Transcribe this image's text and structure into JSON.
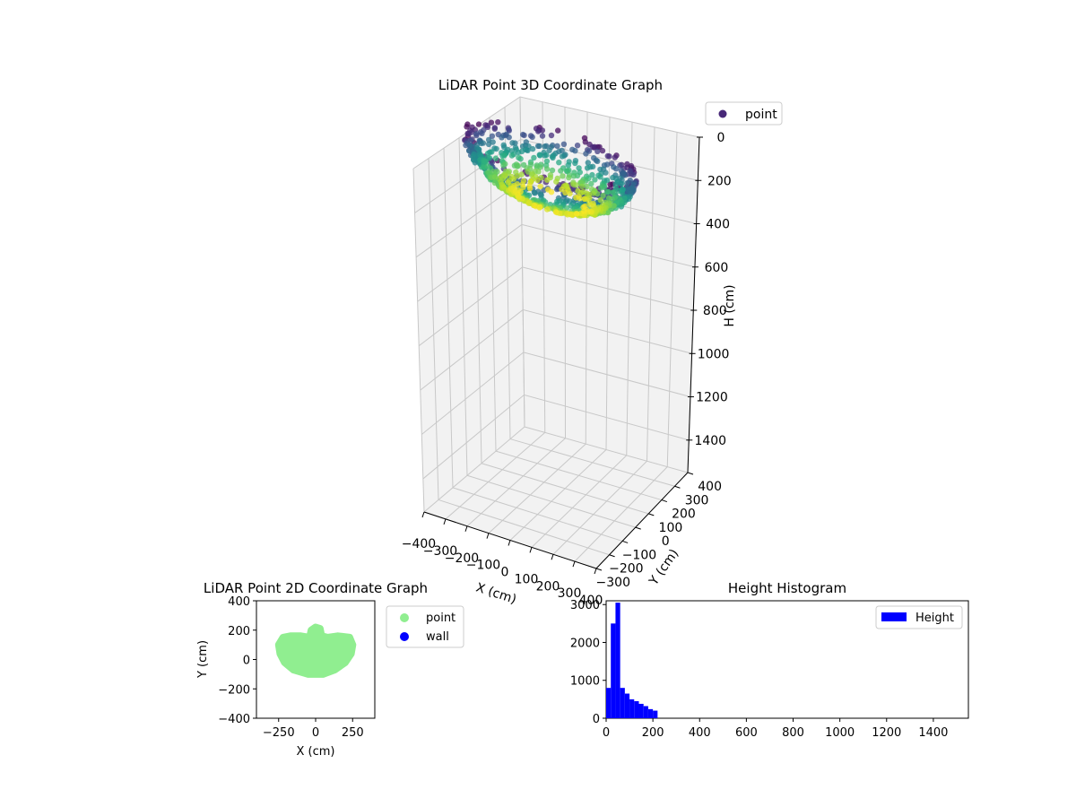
{
  "colors": {
    "pane_fill": "#f2f2f2",
    "grid": "#c8c8c8",
    "point_2d": "#90ee90",
    "wall_2d": "#0000ff",
    "histogram_bar": "#0000ff",
    "legend_point_3d": "#482878",
    "viridis": [
      "#440154",
      "#482878",
      "#3e4a89",
      "#31688e",
      "#26828e",
      "#1f9e89",
      "#35b779",
      "#6ece58",
      "#b5de2b",
      "#fde725"
    ]
  },
  "chart_data": [
    {
      "type": "scatter",
      "projection": "3d",
      "title": "LiDAR Point 3D Coordinate Graph",
      "xlabel": "X (cm)",
      "ylabel": "Y (cm)",
      "zlabel": "H (cm)",
      "xlim": [
        -400,
        400
      ],
      "ylim": [
        -300,
        400
      ],
      "zlim": [
        1550,
        0
      ],
      "x_ticks": [
        -400,
        -300,
        -200,
        -100,
        0,
        100,
        200,
        300,
        400
      ],
      "y_ticks": [
        -300,
        -200,
        -100,
        0,
        100,
        200,
        300,
        400
      ],
      "z_ticks": [
        0,
        200,
        400,
        600,
        800,
        1000,
        1200,
        1400
      ],
      "z_inverted": true,
      "colormap": "viridis (by height)",
      "legend": {
        "entries": [
          "point"
        ],
        "placement": "upper-right outside"
      },
      "grid": true,
      "point_cloud_shape": "bowl",
      "point_cloud_extent": {
        "x": [
          -400,
          400
        ],
        "y": [
          -100,
          220
        ],
        "h": [
          0,
          220
        ]
      }
    },
    {
      "type": "scatter",
      "title": "LiDAR Point 2D Coordinate Graph",
      "xlabel": "X (cm)",
      "ylabel": "Y (cm)",
      "xlim": [
        -400,
        400
      ],
      "ylim": [
        -400,
        400
      ],
      "x_ticks": [
        -250,
        0,
        250
      ],
      "y_ticks": [
        -400,
        -200,
        0,
        200,
        400
      ],
      "legend": {
        "entries": [
          "point",
          "wall"
        ],
        "placement": "upper-right outside"
      },
      "grid": false,
      "series": [
        {
          "name": "point",
          "color": "#90ee90",
          "outline": [
            [
              -240,
              40
            ],
            [
              -250,
              100
            ],
            [
              -220,
              150
            ],
            [
              -170,
              160
            ],
            [
              -100,
              160
            ],
            [
              -40,
              150
            ],
            [
              -30,
              200
            ],
            [
              0,
              220
            ],
            [
              30,
              210
            ],
            [
              40,
              160
            ],
            [
              80,
              150
            ],
            [
              150,
              160
            ],
            [
              230,
              150
            ],
            [
              250,
              100
            ],
            [
              240,
              40
            ],
            [
              200,
              -20
            ],
            [
              130,
              -70
            ],
            [
              50,
              -100
            ],
            [
              -50,
              -100
            ],
            [
              -150,
              -70
            ],
            [
              -210,
              -20
            ]
          ]
        },
        {
          "name": "wall",
          "color": "#0000ff",
          "points": []
        }
      ]
    },
    {
      "type": "bar",
      "subtype": "histogram",
      "title": "Height Histogram",
      "xlabel": "",
      "ylabel": "",
      "xlim": [
        0,
        1550
      ],
      "ylim": [
        0,
        3100
      ],
      "x_ticks": [
        0,
        200,
        400,
        600,
        800,
        1000,
        1200,
        1400
      ],
      "y_ticks": [
        0,
        1000,
        2000,
        3000
      ],
      "legend": {
        "entries": [
          "Height"
        ],
        "placement": "upper-right"
      },
      "grid": false,
      "bin_edges": [
        0,
        20,
        40,
        60,
        80,
        100,
        120,
        140,
        160,
        180,
        200,
        220
      ],
      "series": [
        {
          "name": "Height",
          "values": [
            800,
            2500,
            3050,
            800,
            650,
            500,
            450,
            380,
            320,
            240,
            200
          ]
        }
      ]
    }
  ]
}
